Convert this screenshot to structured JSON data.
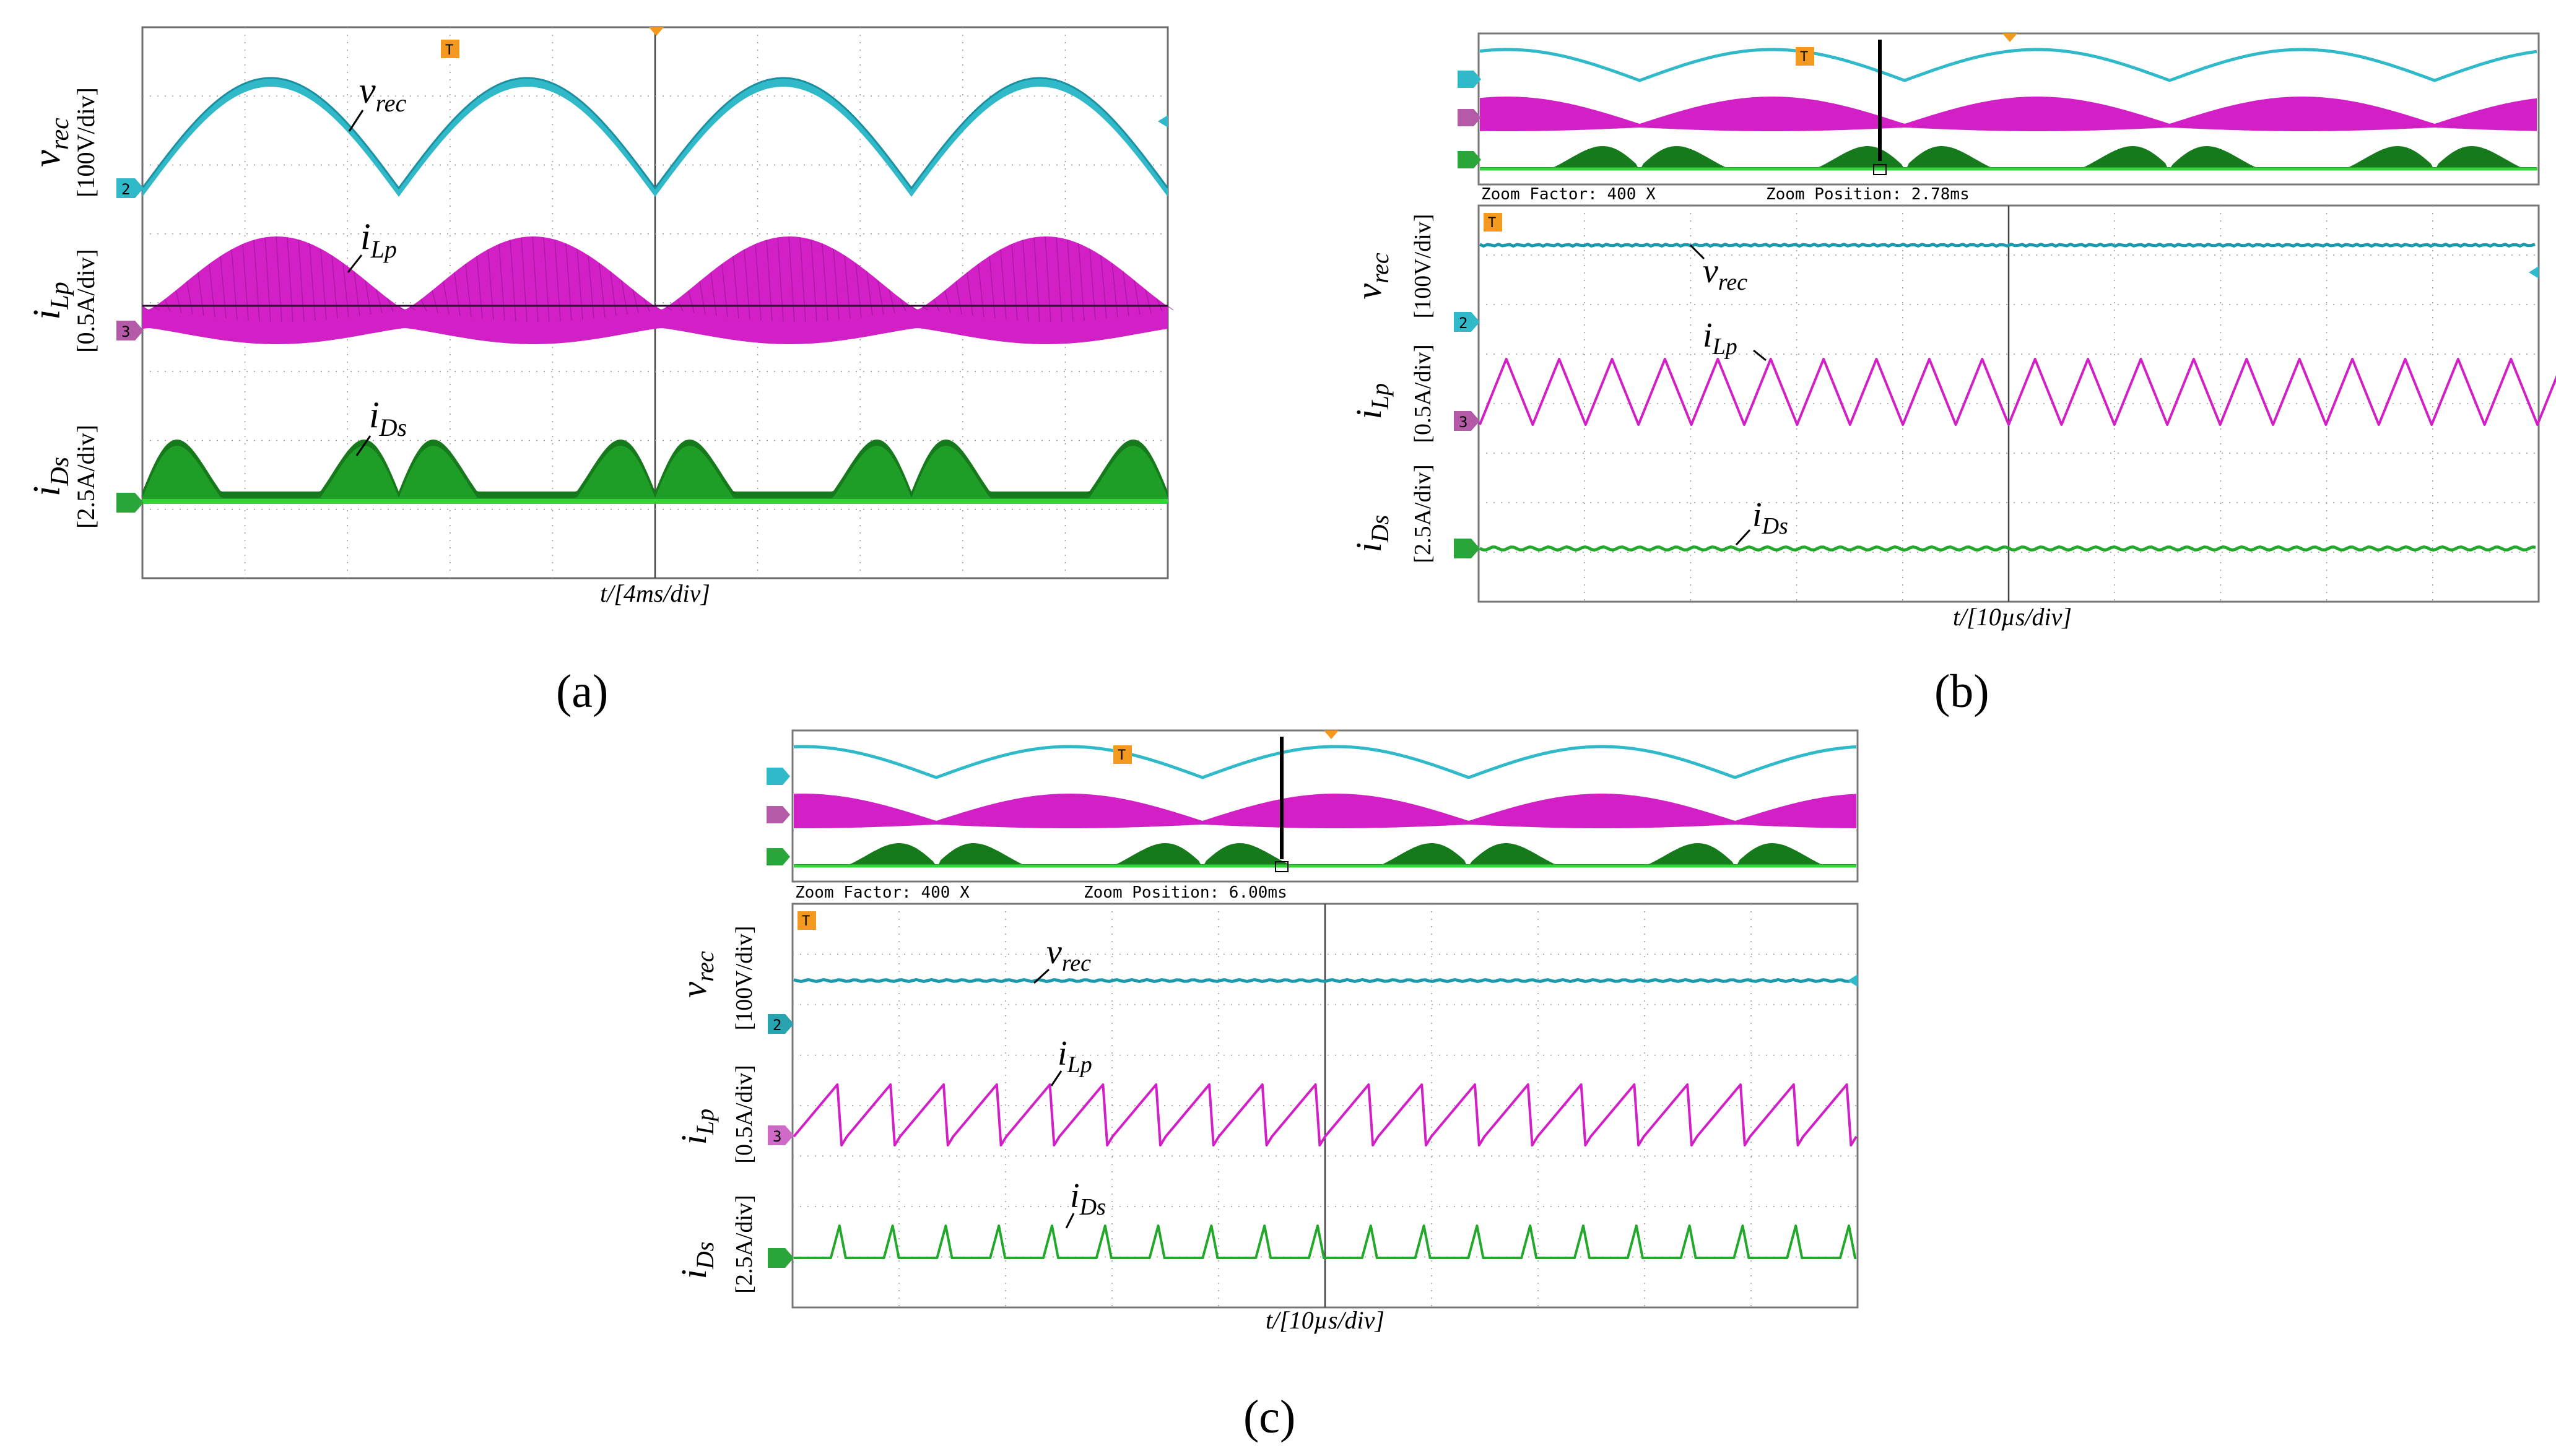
{
  "figure": {
    "panels": [
      {
        "id": "a",
        "caption": "(a)",
        "time_label": "t/[4ms/div]",
        "labels": {
          "v": "v",
          "v_sub": "rec",
          "i_lp": "i",
          "i_lp_sub": "Lp",
          "i_ds": "i",
          "i_ds_sub": "Ds"
        },
        "scale_labels": {
          "v": "[100V/div]",
          "i_lp": "[0.5A/div]",
          "i_ds": "[2.5A/div]"
        }
      },
      {
        "id": "b",
        "caption": "(b)",
        "time_label": "t/[10µs/div]",
        "zoom_factor": "Zoom Factor: 400 X",
        "zoom_position": "Zoom Position: 2.78ms",
        "labels": {
          "v": "v",
          "v_sub": "rec",
          "i_lp": "i",
          "i_lp_sub": "Lp",
          "i_ds": "i",
          "i_ds_sub": "Ds"
        },
        "scale_labels": {
          "v": "[100V/div]",
          "i_lp": "[0.5A/div]",
          "i_ds": "[2.5A/div]"
        }
      },
      {
        "id": "c",
        "caption": "(c)",
        "time_label": "t/[10µs/div]",
        "zoom_factor": "Zoom Factor: 400 X",
        "zoom_position": "Zoom Position: 6.00ms",
        "labels": {
          "v": "v",
          "v_sub": "rec",
          "i_lp": "i",
          "i_lp_sub": "Lp",
          "i_ds": "i",
          "i_ds_sub": "Ds"
        },
        "scale_labels": {
          "v": "[100V/div]",
          "i_lp": "[0.5A/div]",
          "i_ds": "[2.5A/div]"
        }
      }
    ],
    "channel_markers": {
      "ch2": "2",
      "ch3": "3",
      "trigger": "T"
    },
    "colors": {
      "v_rec": "#2fb9c9",
      "i_lp": "#d21fc6",
      "i_ds": "#22a82a",
      "i_ds_dark": "#167a1c",
      "trigger": "#f39a1e",
      "grid": "#9a9a9a"
    }
  },
  "chart_data": [
    {
      "type": "line",
      "title": "(a)",
      "xlabel": "t/[4ms/div]",
      "x_divisions": 10,
      "series": [
        {
          "name": "v_rec",
          "unit": "100V/div",
          "shape": "rectified sine, 100 Hz humps",
          "half_periods_visible": 4
        },
        {
          "name": "i_Lp",
          "unit": "0.5A/div",
          "shape": "high-frequency triangle within rectified-sine envelope"
        },
        {
          "name": "i_Ds",
          "unit": "2.5A/div",
          "shape": "pulse bursts near line-voltage valleys"
        }
      ]
    },
    {
      "type": "line",
      "title": "(b)",
      "xlabel": "t/[10µs/div]",
      "x_divisions": 10,
      "zoom_factor": 400,
      "zoom_position_ms": 2.78,
      "series": [
        {
          "name": "v_rec",
          "unit": "100V/div",
          "shape": "flat"
        },
        {
          "name": "i_Lp",
          "unit": "0.5A/div",
          "shape": "symmetric triangle",
          "cycles_visible": 20
        },
        {
          "name": "i_Ds",
          "unit": "2.5A/div",
          "shape": "near zero"
        }
      ]
    },
    {
      "type": "line",
      "title": "(c)",
      "xlabel": "t/[10µs/div]",
      "x_divisions": 10,
      "zoom_factor": 400,
      "zoom_position_ms": 6.0,
      "series": [
        {
          "name": "v_rec",
          "unit": "100V/div",
          "shape": "flat"
        },
        {
          "name": "i_Lp",
          "unit": "0.5A/div",
          "shape": "sawtooth with sharp fall",
          "cycles_visible": 20
        },
        {
          "name": "i_Ds",
          "unit": "2.5A/div",
          "shape": "narrow spikes",
          "pulses_visible": 20
        }
      ]
    }
  ]
}
